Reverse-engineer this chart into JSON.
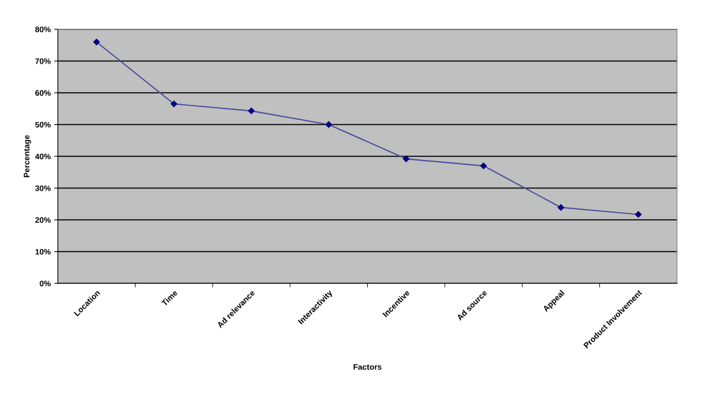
{
  "chart_data": {
    "type": "line",
    "xlabel": "Factors",
    "ylabel": "Percentage",
    "categories": [
      "Location",
      "Time",
      "Ad relevance",
      "Interactivity",
      "Incentive",
      "Ad source",
      "Appeal",
      "Product Involvement"
    ],
    "series": [
      {
        "color": "#4a4a9c",
        "values": [
          76,
          56.5,
          54.3,
          50,
          39.2,
          37,
          23.9,
          21.7
        ]
      }
    ],
    "ylim": [
      0,
      80
    ],
    "yticks": [
      {
        "value": 0,
        "label": "0%"
      },
      {
        "value": 10,
        "label": "10%"
      },
      {
        "value": 20,
        "label": "20%"
      },
      {
        "value": 30,
        "label": "30%"
      },
      {
        "value": 40,
        "label": "40%"
      },
      {
        "value": 50,
        "label": "50%"
      },
      {
        "value": 60,
        "label": "60%"
      },
      {
        "value": 70,
        "label": "70%"
      },
      {
        "value": 80,
        "label": "80%"
      }
    ],
    "grid": "y",
    "marker": "diamond",
    "line_style": "solid"
  }
}
